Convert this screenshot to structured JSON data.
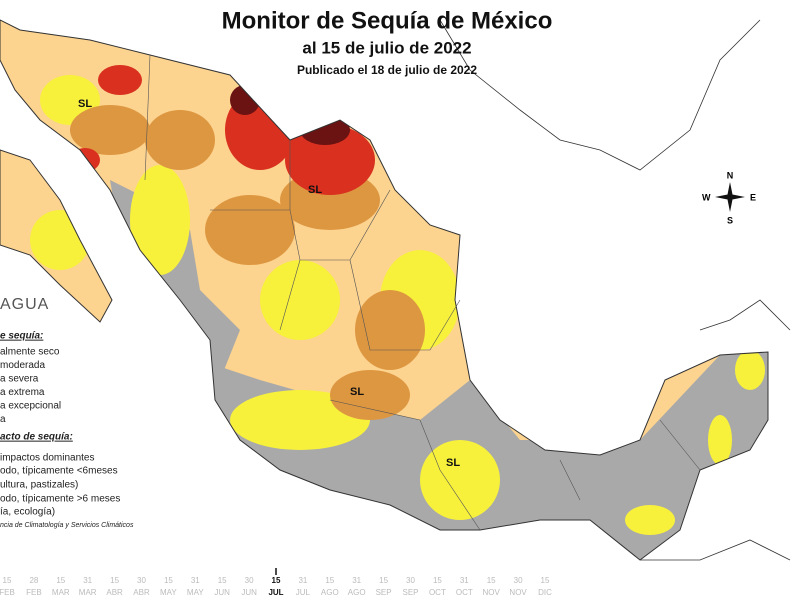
{
  "header": {
    "title": "Monitor de Sequía de México",
    "subtitle": "al 15 de julio de 2022",
    "published": "Publicado el 18 de julio de 2022"
  },
  "map_labels": [
    "SL",
    "SL",
    "SL",
    "SL"
  ],
  "compass": {
    "n": "N",
    "s": "S",
    "e": "E",
    "w": "W"
  },
  "logo": "AGUA",
  "legend": {
    "intensity_title": "e sequía:",
    "intensity": [
      "almente seco",
      "moderada",
      "a severa",
      "a extrema",
      "a excepcional",
      "a"
    ],
    "impact_title": "acto de sequía:",
    "impact": [
      "impactos dominantes",
      "odo, típicamente <6meses",
      "ultura, pastizales)",
      "odo, típicamente >6 meses",
      "ía, ecología)"
    ],
    "credit": "ncia de Climatología y Servicios Climáticos"
  },
  "timeline": {
    "days": [
      "15",
      "28",
      "15",
      "31",
      "15",
      "30",
      "15",
      "31",
      "15",
      "30",
      "15",
      "31",
      "15",
      "31",
      "15",
      "30",
      "15",
      "31",
      "15",
      "30",
      "15"
    ],
    "months": [
      "FEB",
      "FEB",
      "MAR",
      "MAR",
      "ABR",
      "ABR",
      "MAY",
      "MAY",
      "JUN",
      "JUN",
      "JUL",
      "JUL",
      "AGO",
      "AGO",
      "SEP",
      "SEP",
      "OCT",
      "OCT",
      "NOV",
      "NOV",
      "DIC"
    ],
    "current": 10
  }
}
